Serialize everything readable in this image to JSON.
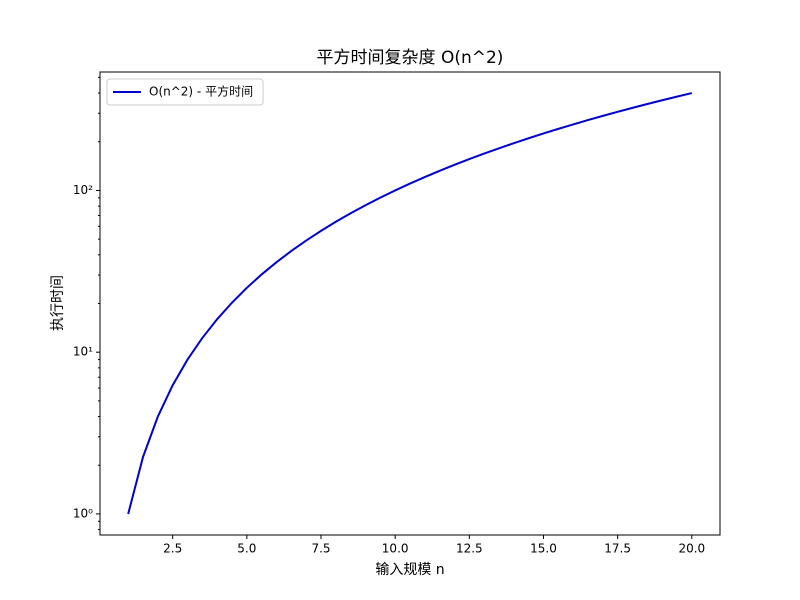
{
  "chart_data": {
    "type": "line",
    "title": "平方时间复杂度 O(n^2)",
    "xlabel": "输入规模 n",
    "ylabel": "执行时间",
    "x": [
      1,
      1.5,
      2,
      2.5,
      3,
      3.5,
      4,
      4.5,
      5,
      5.5,
      6,
      6.5,
      7,
      7.5,
      8,
      8.5,
      9,
      9.5,
      10,
      10.5,
      11,
      11.5,
      12,
      12.5,
      13,
      13.5,
      14,
      14.5,
      15,
      15.5,
      16,
      16.5,
      17,
      17.5,
      18,
      18.5,
      19,
      19.5,
      20
    ],
    "series": [
      {
        "name": "O(n^2) - 平方时间",
        "color": "#0000cd",
        "values": [
          1,
          2.25,
          4,
          6.25,
          9,
          12.25,
          16,
          20.25,
          25,
          30.25,
          36,
          42.25,
          49,
          56.25,
          64,
          72.25,
          81,
          90.25,
          100,
          110.25,
          121,
          132.25,
          144,
          156.25,
          169,
          182.25,
          196,
          210.25,
          225,
          240.25,
          256,
          272.25,
          289,
          306.25,
          324,
          342.25,
          361,
          380.25,
          400
        ]
      }
    ],
    "xlim": [
      0.05,
      20.95
    ],
    "ylim": [
      0.741,
      539.8
    ],
    "yscale": "log",
    "xticks": [
      2.5,
      {
        "value": 5,
        "label": "5.0"
      },
      7.5,
      {
        "value": 10,
        "label": "10.0"
      },
      12.5,
      {
        "value": 15,
        "label": "15.0"
      },
      17.5,
      {
        "value": 20,
        "label": "20.0"
      }
    ],
    "yticks": [
      {
        "value": 1,
        "label": "10⁰"
      },
      {
        "value": 10,
        "label": "10¹"
      },
      {
        "value": 100,
        "label": "10²"
      }
    ],
    "yminorticks": [
      0.8,
      0.9,
      2,
      3,
      4,
      5,
      6,
      7,
      8,
      9,
      20,
      30,
      40,
      50,
      60,
      70,
      80,
      90,
      200,
      300,
      400,
      500
    ],
    "grid": false,
    "legend": "upper left"
  }
}
